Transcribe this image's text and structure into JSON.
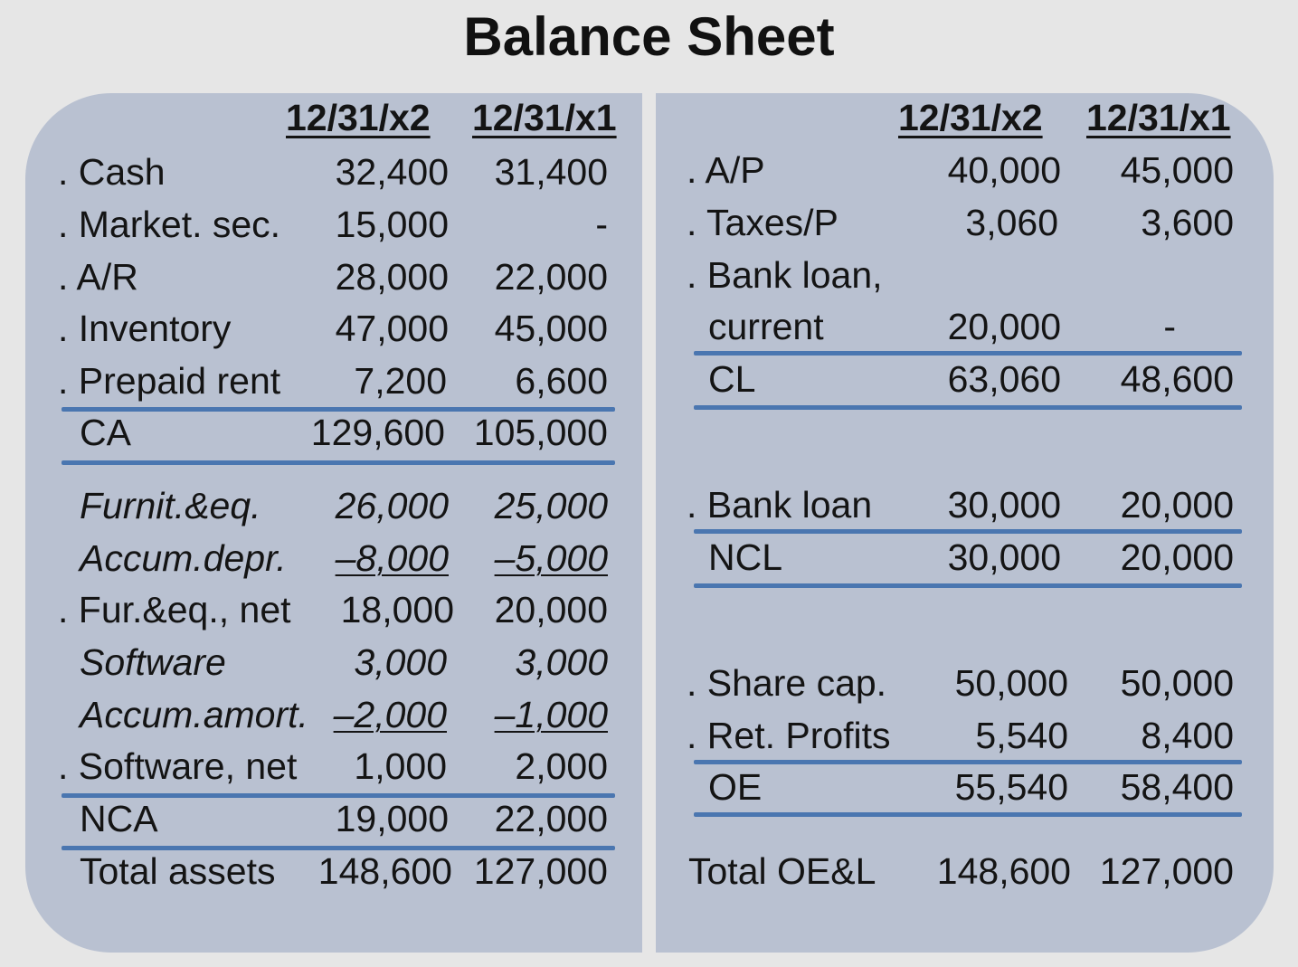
{
  "title": "Balance Sheet",
  "left": {
    "headers": [
      "12/31/x2",
      "12/31/x1"
    ],
    "rows": [
      {
        "label": ". Cash",
        "x2": "32,400",
        "x1": "31,400"
      },
      {
        "label": ". Market. sec.",
        "x2": "15,000",
        "x1": "-"
      },
      {
        "label": ". A/R",
        "x2": "28,000",
        "x1": "22,000"
      },
      {
        "label": ". Inventory",
        "x2": "47,000",
        "x1": "45,000"
      },
      {
        "label": ". Prepaid rent",
        "x2": "7,200",
        "x1": "6,600"
      },
      {
        "label": "CA",
        "x2": "129,600",
        "x1": "105,000"
      },
      {
        "label": "Furnit.&eq.",
        "x2": "26,000",
        "x1": "25,000"
      },
      {
        "label": "Accum.depr.",
        "x2": "–8,000",
        "x1": "–5,000"
      },
      {
        "label": ". Fur.&eq., net",
        "x2": "18,000",
        "x1": "20,000"
      },
      {
        "label": "Software",
        "x2": "3,000",
        "x1": "3,000"
      },
      {
        "label": "Accum.amort.",
        "x2": "–2,000",
        "x1": "–1,000"
      },
      {
        "label": ". Software, net",
        "x2": "1,000",
        "x1": "2,000"
      },
      {
        "label": "NCA",
        "x2": "19,000",
        "x1": "22,000"
      },
      {
        "label": "Total assets",
        "x2": "148,600",
        "x1": "127,000"
      }
    ]
  },
  "right": {
    "headers": [
      "12/31/x2",
      "12/31/x1"
    ],
    "rows": [
      {
        "label": ". A/P",
        "x2": "40,000",
        "x1": "45,000"
      },
      {
        "label": ". Taxes/P",
        "x2": "3,060",
        "x1": "3,600"
      },
      {
        "label": ". Bank loan,",
        "x2": "",
        "x1": ""
      },
      {
        "label": "current",
        "x2": "20,000",
        "x1": "-"
      },
      {
        "label": "CL",
        "x2": "63,060",
        "x1": "48,600"
      },
      {
        "label": ". Bank loan",
        "x2": "30,000",
        "x1": "20,000"
      },
      {
        "label": "NCL",
        "x2": "30,000",
        "x1": "20,000"
      },
      {
        "label": ". Share cap.",
        "x2": "50,000",
        "x1": "50,000"
      },
      {
        "label": ". Ret. Profits",
        "x2": "5,540",
        "x1": "8,400"
      },
      {
        "label": "OE",
        "x2": "55,540",
        "x1": "58,400"
      },
      {
        "label": "Total OE&L",
        "x2": "148,600",
        "x1": "127,000"
      }
    ]
  },
  "colors": {
    "panel": "#b9c1d1",
    "rule": "#4a76b0",
    "background": "#e6e6e6"
  }
}
